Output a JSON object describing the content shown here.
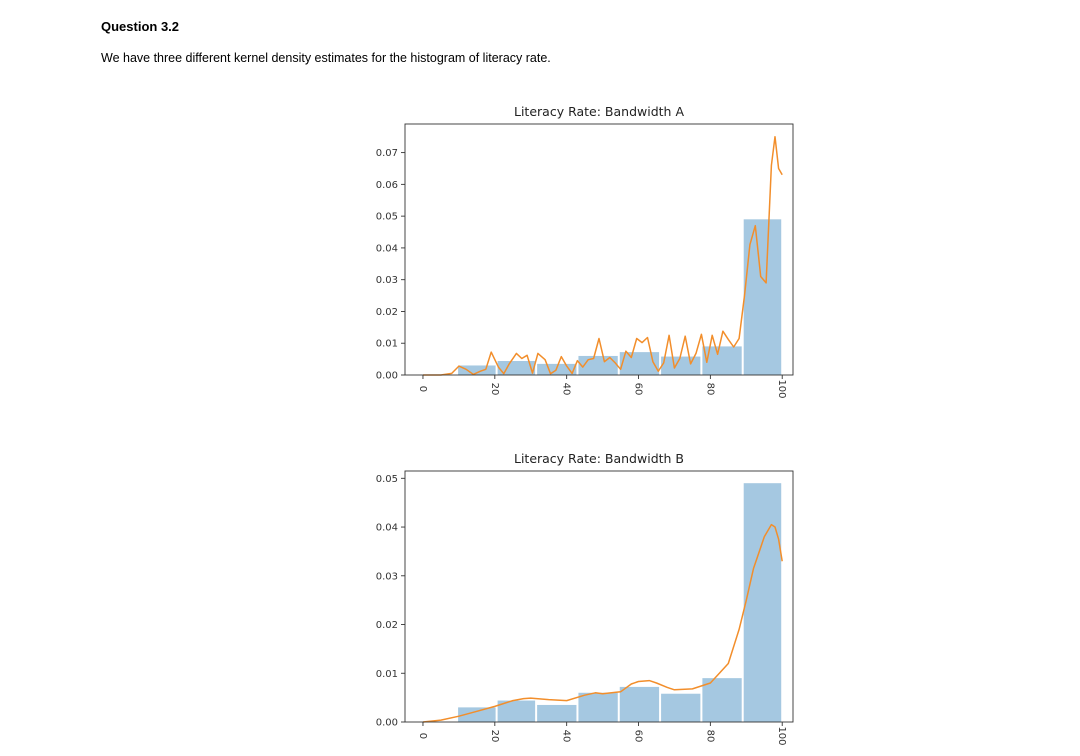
{
  "question": {
    "title": "Question 3.2",
    "text": "We have three different kernel density estimates for the histogram of literacy rate."
  },
  "colors": {
    "bar": "#a5c8e1",
    "kde": "#f28e2b",
    "axis": "#333333"
  },
  "chart_data": [
    {
      "type": "bar",
      "title": "Literacy Rate: Bandwidth A",
      "xlabel": "",
      "ylabel": "",
      "xlim": [
        -5,
        103
      ],
      "ylim": [
        0,
        0.079
      ],
      "xticks": [
        0,
        20,
        40,
        60,
        80,
        100
      ],
      "yticks": [
        0.0,
        0.01,
        0.02,
        0.03,
        0.04,
        0.05,
        0.06,
        0.07
      ],
      "ytick_labels": [
        "0.00",
        "0.01",
        "0.02",
        "0.03",
        "0.04",
        "0.05",
        "0.06",
        "0.07"
      ],
      "bins": [
        [
          9.5,
          20.5
        ],
        [
          20.5,
          31.5
        ],
        [
          31.5,
          43
        ],
        [
          43,
          54.5
        ],
        [
          54.5,
          66
        ],
        [
          66,
          77.5
        ],
        [
          77.5,
          89
        ],
        [
          89,
          100
        ]
      ],
      "values": [
        0.003,
        0.0044,
        0.0035,
        0.006,
        0.0072,
        0.0058,
        0.009,
        0.049
      ],
      "kde": {
        "x": [
          0,
          5,
          8,
          10,
          12,
          14,
          16,
          17.5,
          19,
          21,
          22.5,
          24,
          26,
          27.5,
          29,
          30.5,
          32,
          34,
          35.5,
          37,
          38.5,
          40,
          41.5,
          43,
          44.5,
          46,
          47.5,
          49,
          50.5,
          52,
          53.5,
          55,
          56.5,
          58,
          59.5,
          61,
          62.5,
          64,
          65.5,
          67,
          68.5,
          70,
          71.5,
          73,
          74.5,
          76,
          77.5,
          79,
          80.5,
          82,
          83.5,
          85,
          86.5,
          88,
          89.5,
          91,
          92.5,
          94,
          95.5,
          97,
          98,
          99,
          100
        ],
        "y": [
          0.0,
          0.0,
          0.0005,
          0.0028,
          0.0018,
          0.0002,
          0.0012,
          0.0018,
          0.0072,
          0.0025,
          0.0004,
          0.0035,
          0.0068,
          0.0052,
          0.0062,
          0.0006,
          0.0068,
          0.0048,
          0.0004,
          0.0015,
          0.0058,
          0.0028,
          0.0005,
          0.0045,
          0.0025,
          0.0048,
          0.0052,
          0.0115,
          0.0042,
          0.0055,
          0.0038,
          0.0018,
          0.0075,
          0.0055,
          0.0115,
          0.0102,
          0.0118,
          0.0042,
          0.0012,
          0.0038,
          0.0125,
          0.0022,
          0.0052,
          0.0122,
          0.0035,
          0.0068,
          0.0128,
          0.004,
          0.0125,
          0.0065,
          0.0138,
          0.0112,
          0.0088,
          0.0115,
          0.025,
          0.041,
          0.047,
          0.031,
          0.029,
          0.066,
          0.075,
          0.065,
          0.063
        ]
      }
    },
    {
      "type": "bar",
      "title": "Literacy Rate: Bandwidth B",
      "xlabel": "",
      "ylabel": "",
      "xlim": [
        -5,
        103
      ],
      "ylim": [
        0,
        0.0515
      ],
      "xticks": [
        0,
        20,
        40,
        60,
        80,
        100
      ],
      "yticks": [
        0.0,
        0.01,
        0.02,
        0.03,
        0.04,
        0.05
      ],
      "ytick_labels": [
        "0.00",
        "0.01",
        "0.02",
        "0.03",
        "0.04",
        "0.05"
      ],
      "bins": [
        [
          9.5,
          20.5
        ],
        [
          20.5,
          31.5
        ],
        [
          31.5,
          43
        ],
        [
          43,
          54.5
        ],
        [
          54.5,
          66
        ],
        [
          66,
          77.5
        ],
        [
          77.5,
          89
        ],
        [
          89,
          100
        ]
      ],
      "values": [
        0.003,
        0.0044,
        0.0035,
        0.006,
        0.0072,
        0.0058,
        0.009,
        0.049
      ],
      "kde": {
        "x": [
          0,
          5,
          10,
          15,
          20,
          25,
          28,
          30,
          35,
          40,
          45,
          48,
          50,
          55,
          58,
          60,
          63,
          65,
          68,
          70,
          75,
          80,
          85,
          88,
          90,
          92,
          95,
          97,
          98,
          99,
          100
        ],
        "y": [
          0.0,
          0.0004,
          0.0012,
          0.0022,
          0.0032,
          0.0044,
          0.0048,
          0.0049,
          0.0046,
          0.0044,
          0.0055,
          0.006,
          0.0058,
          0.0062,
          0.0078,
          0.0083,
          0.0085,
          0.008,
          0.0071,
          0.0066,
          0.0068,
          0.008,
          0.012,
          0.019,
          0.025,
          0.0315,
          0.038,
          0.0405,
          0.04,
          0.0375,
          0.033
        ]
      }
    }
  ]
}
